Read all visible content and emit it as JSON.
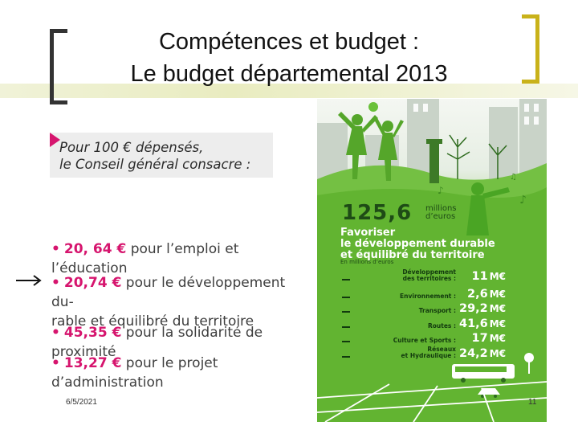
{
  "title": {
    "line1": "Compétences et budget :",
    "line2": "Le budget départemental 2013"
  },
  "intro": {
    "line1": "Pour 100 € dépensés,",
    "line2": "le Conseil général consacre :"
  },
  "items": [
    {
      "bullet": "•",
      "amount": "20, 64 €",
      "text1": " pour l’emploi et l’éducation",
      "text2": ""
    },
    {
      "bullet": "•",
      "amount": "20,74 €",
      "text1": " pour le développement du-",
      "text2": "rable et équilibré du territoire"
    },
    {
      "bullet": "•",
      "amount": "45,35 €",
      "text1": " pour la solidarité de proximité",
      "text2": ""
    },
    {
      "bullet": "•",
      "amount": "13,27 €",
      "text1": " pour le projet d’administration",
      "text2": ""
    }
  ],
  "poster": {
    "amount": "125,6",
    "unit_line1": "millions",
    "unit_line2": "d’euros",
    "title_line1": "Favoriser",
    "title_line2": "le développement durable",
    "title_line3": "et équilibré du territoire",
    "subtitle": "En millions d’euros",
    "rows": [
      {
        "label1": "Développement",
        "label2": "des territoires :",
        "value": "11",
        "currency": "M€"
      },
      {
        "label1": "Environnement :",
        "label2": "",
        "value": "2,6",
        "currency": "M€"
      },
      {
        "label1": "Transport :",
        "label2": "",
        "value": "29,2",
        "currency": "M€"
      },
      {
        "label1": "Routes :",
        "label2": "",
        "value": "41,6",
        "currency": "M€"
      },
      {
        "label1": "Culture et Sports :",
        "label2": "",
        "value": "17",
        "currency": "M€"
      },
      {
        "label1": "Réseaux",
        "label2": "et Hydraulique :",
        "value": "24,2",
        "currency": "M€"
      }
    ]
  },
  "footer": {
    "date": "6/5/2021",
    "page": "11"
  },
  "colors": {
    "accent": "#d6156e",
    "bracket_left": "#333333",
    "bracket_right": "#c9b21a",
    "poster_green": "#5fb22f",
    "poster_dark": "#123a0e"
  }
}
